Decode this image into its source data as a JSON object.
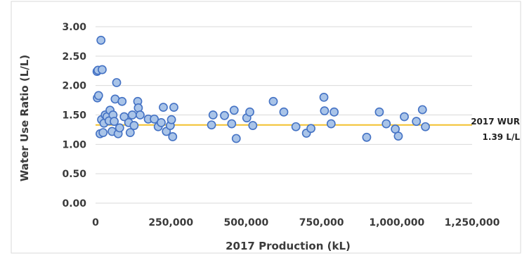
{
  "chart_data": {
    "type": "scatter",
    "xlabel": "2017 Production (kL)",
    "ylabel": "Water Use Ratio (L/L)",
    "xlim": [
      0,
      1250000
    ],
    "ylim": [
      0,
      3
    ],
    "x_ticks": [
      "0",
      "250,000",
      "500,000",
      "750,000",
      "1,000,000",
      "1,250,000"
    ],
    "y_ticks": [
      "0.00",
      "0.50",
      "1.00",
      "1.50",
      "2.00",
      "2.50",
      "3.00"
    ],
    "grid": "horizontal",
    "legend": "none",
    "reference_line": {
      "value": 1.33,
      "color": "#f2c12e"
    },
    "annotation": {
      "line1": "2017 WUR",
      "line2": "1.39 L/L"
    },
    "marker_fill": "#a9c4e8",
    "marker_stroke": "#4472c4",
    "points": [
      {
        "x": 5000,
        "y": 2.24
      },
      {
        "x": 8000,
        "y": 2.26
      },
      {
        "x": 22000,
        "y": 2.27
      },
      {
        "x": 18000,
        "y": 2.77
      },
      {
        "x": 6000,
        "y": 1.79
      },
      {
        "x": 10000,
        "y": 1.83
      },
      {
        "x": 15000,
        "y": 1.18
      },
      {
        "x": 20000,
        "y": 1.42
      },
      {
        "x": 25000,
        "y": 1.2
      },
      {
        "x": 28000,
        "y": 1.36
      },
      {
        "x": 32000,
        "y": 1.5
      },
      {
        "x": 38000,
        "y": 1.47
      },
      {
        "x": 45000,
        "y": 1.4
      },
      {
        "x": 48000,
        "y": 1.58
      },
      {
        "x": 55000,
        "y": 1.22
      },
      {
        "x": 58000,
        "y": 1.5
      },
      {
        "x": 62000,
        "y": 1.39
      },
      {
        "x": 65000,
        "y": 1.77
      },
      {
        "x": 70000,
        "y": 2.05
      },
      {
        "x": 75000,
        "y": 1.18
      },
      {
        "x": 80000,
        "y": 1.28
      },
      {
        "x": 88000,
        "y": 1.73
      },
      {
        "x": 95000,
        "y": 1.47
      },
      {
        "x": 110000,
        "y": 1.37
      },
      {
        "x": 115000,
        "y": 1.2
      },
      {
        "x": 122000,
        "y": 1.5
      },
      {
        "x": 128000,
        "y": 1.32
      },
      {
        "x": 140000,
        "y": 1.73
      },
      {
        "x": 142000,
        "y": 1.62
      },
      {
        "x": 148000,
        "y": 1.5
      },
      {
        "x": 175000,
        "y": 1.43
      },
      {
        "x": 195000,
        "y": 1.43
      },
      {
        "x": 208000,
        "y": 1.3
      },
      {
        "x": 218000,
        "y": 1.37
      },
      {
        "x": 225000,
        "y": 1.63
      },
      {
        "x": 235000,
        "y": 1.22
      },
      {
        "x": 248000,
        "y": 1.32
      },
      {
        "x": 252000,
        "y": 1.42
      },
      {
        "x": 256000,
        "y": 1.13
      },
      {
        "x": 260000,
        "y": 1.63
      },
      {
        "x": 385000,
        "y": 1.33
      },
      {
        "x": 390000,
        "y": 1.5
      },
      {
        "x": 428000,
        "y": 1.49
      },
      {
        "x": 452000,
        "y": 1.35
      },
      {
        "x": 460000,
        "y": 1.58
      },
      {
        "x": 467000,
        "y": 1.1
      },
      {
        "x": 502000,
        "y": 1.45
      },
      {
        "x": 512000,
        "y": 1.55
      },
      {
        "x": 522000,
        "y": 1.32
      },
      {
        "x": 590000,
        "y": 1.73
      },
      {
        "x": 625000,
        "y": 1.55
      },
      {
        "x": 665000,
        "y": 1.3
      },
      {
        "x": 700000,
        "y": 1.19
      },
      {
        "x": 715000,
        "y": 1.27
      },
      {
        "x": 758000,
        "y": 1.8
      },
      {
        "x": 760000,
        "y": 1.57
      },
      {
        "x": 782000,
        "y": 1.35
      },
      {
        "x": 792000,
        "y": 1.55
      },
      {
        "x": 900000,
        "y": 1.12
      },
      {
        "x": 942000,
        "y": 1.55
      },
      {
        "x": 965000,
        "y": 1.35
      },
      {
        "x": 995000,
        "y": 1.26
      },
      {
        "x": 1005000,
        "y": 1.14
      },
      {
        "x": 1025000,
        "y": 1.47
      },
      {
        "x": 1065000,
        "y": 1.39
      },
      {
        "x": 1085000,
        "y": 1.59
      },
      {
        "x": 1095000,
        "y": 1.3
      }
    ]
  }
}
